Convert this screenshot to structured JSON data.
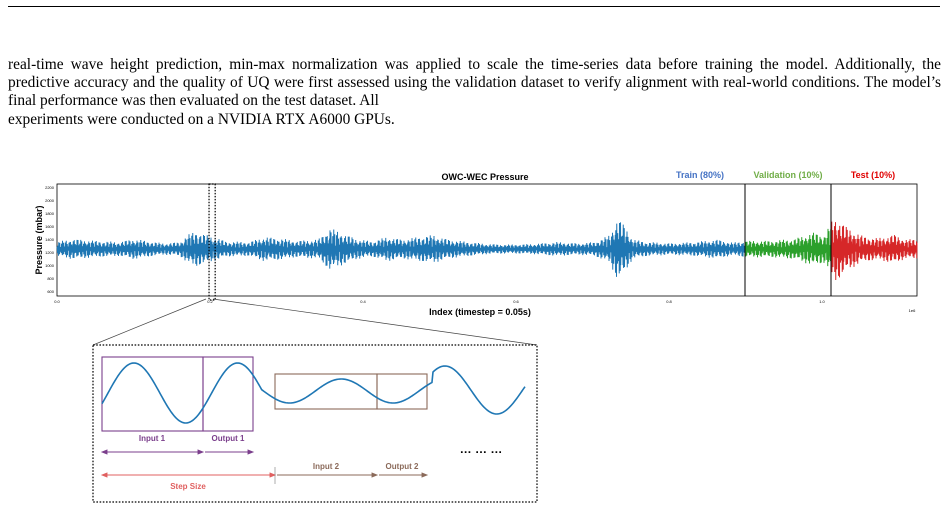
{
  "paragraph": {
    "lines": [
      "real-time wave height prediction, min-max normalization was applied to scale the time-series data before training the",
      "model. Additionally, the predictive accuracy and the quality of UQ were first assessed using the validation dataset to",
      "verify alignment with real-world conditions. The model’s final performance was then evaluated on the test dataset. All",
      "experiments were conducted on a NVIDIA RTX A6000 GPUs."
    ]
  },
  "figure": {
    "colors": {
      "train": "#1f77b4",
      "validation": "#2ca02c",
      "test": "#d62728",
      "train_label": "#4472c4",
      "validation_label": "#70ad47",
      "test_label": "#e00000",
      "purple": "#7b3f8c",
      "brown": "#8b6a5a",
      "red_arrow": "#e06060"
    },
    "chart_data": {
      "type": "line",
      "title": "OWC-WEC Pressure",
      "xlabel": "Index (timestep = 0.05s)",
      "ylabel": "Pressure (mbar)",
      "x_ticks": [
        "0.0",
        "0.2",
        "0.4",
        "0.6",
        "0.8",
        "1.0",
        "1e6"
      ],
      "y_ticks": [
        "2200",
        "2000",
        "1800",
        "1600",
        "1400",
        "1200",
        "1000",
        "800",
        "600"
      ],
      "ylim": [
        560,
        2300
      ],
      "xlim": [
        0,
        1.12
      ],
      "series": [
        {
          "name": "Train (80%)",
          "range": [
            0,
            0.896
          ]
        },
        {
          "name": "Validation (10%)",
          "range": [
            0.896,
            1.008
          ]
        },
        {
          "name": "Test (10%)",
          "range": [
            1.008,
            1.12
          ]
        }
      ],
      "split_lines": [
        0.896,
        1.008
      ],
      "zoom_window": [
        0.198,
        0.206
      ]
    },
    "inset": {
      "labels": {
        "input1": "Input 1",
        "output1": "Output 1",
        "input2": "Input 2",
        "output2": "Output 2",
        "step_size": "Step Size",
        "ellipsis": "… … …"
      }
    }
  }
}
